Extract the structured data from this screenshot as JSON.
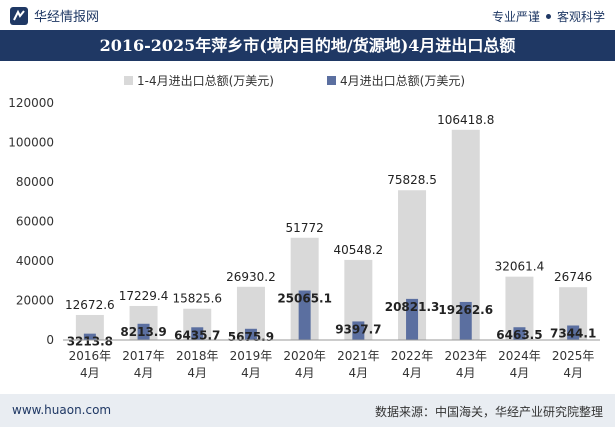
{
  "header": {
    "brand": "华经情报网",
    "tagline_left": "专业严谨",
    "tagline_right": "客观科学",
    "logo_icon": "huajing-logo-icon"
  },
  "title": "2016-2025年萍乡市(境内目的地/货源地)4月进出口总额",
  "footer": {
    "site": "www.huaon.com",
    "source": "数据来源：中国海关，华经产业研究院整理"
  },
  "colors": {
    "header_bg": "#1f3864",
    "series1": "#d9d9d9",
    "series2": "#5b6fa0"
  },
  "chart_data": {
    "type": "bar",
    "categories": [
      "2016年\n4月",
      "2017年\n4月",
      "2018年\n4月",
      "2019年\n4月",
      "2020年\n4月",
      "2021年\n4月",
      "2022年\n4月",
      "2023年\n4月",
      "2024年\n4月",
      "2025年\n4月"
    ],
    "series": [
      {
        "name": "1-4月进出口总额(万美元)",
        "values": [
          12672.6,
          17229.4,
          15825.6,
          26930.2,
          51772,
          40548.2,
          75828.5,
          106418.8,
          32061.4,
          26746
        ],
        "labels": [
          "12672.6",
          "17229.4",
          "15825.6",
          "26930.2",
          "51772",
          "40548.2",
          "75828.5",
          "106418.8",
          "32061.4",
          "26746"
        ]
      },
      {
        "name": "4月进出口总额(万美元)",
        "values": [
          3213.8,
          8213.9,
          6435.7,
          5675.9,
          25065.1,
          9397.7,
          20821.3,
          19262.6,
          6463.5,
          7344.1
        ],
        "labels": [
          "3213.8",
          "8213.9",
          "6435.7",
          "5675.9",
          "25065.1",
          "9397.7",
          "20821.3",
          "19262.6",
          "6463.5",
          "7344.1"
        ]
      }
    ],
    "ylim": [
      0,
      120000
    ],
    "yticks": [
      "0",
      "20000",
      "40000",
      "60000",
      "80000",
      "100000",
      "120000"
    ],
    "legend_position": "top-center",
    "grid": false
  }
}
